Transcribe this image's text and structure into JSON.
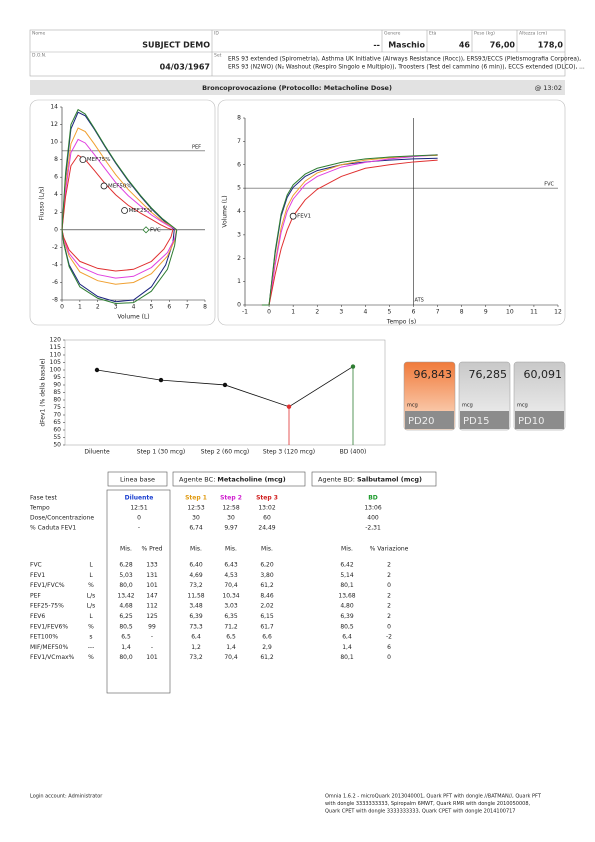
{
  "header": {
    "fields": [
      {
        "label": "Nome",
        "value": "SUBJECT DEMO"
      },
      {
        "label": "ID",
        "value": "--"
      },
      {
        "label": "Genere",
        "value": "Maschio"
      },
      {
        "label": "Età",
        "value": "46"
      },
      {
        "label": "Peso (kg)",
        "value": "76,00"
      },
      {
        "label": "Altezza (cm)",
        "value": "178,0"
      },
      {
        "label": "D.O.N.",
        "value": "04/03/1967"
      }
    ],
    "set": {
      "label": "Set",
      "lines": [
        "ERS 93 extended (Spirometria), Asthma UK Initiative (Airways Resistance (Rocc)), ERS93/ECCS (Pletismografia Corporea),",
        "ERS 93 (N2WO) (N₂ Washout (Respiro Singolo e Multiplo)), Troosters (Test del cammino (6 min)), ECCS extended (DLCO), ..."
      ]
    }
  },
  "section": {
    "title": "Broncoprovocazione  (Protocollo: Metacholine Dose)",
    "time": "@ 13:02"
  },
  "chart_data": [
    {
      "type": "line",
      "x_label": "Volume (L)",
      "y_label": "Flusso (L/s)",
      "xlim": [
        0,
        8
      ],
      "xticks": [
        0,
        1,
        2,
        3,
        4,
        5,
        6,
        7,
        8
      ],
      "ylim": [
        -8,
        14
      ],
      "yticks": [
        -8,
        -6,
        -4,
        -2,
        0,
        2,
        4,
        6,
        8,
        10,
        12,
        14
      ],
      "grid": false,
      "reference_lines": [
        {
          "axis": "y",
          "value": 0
        },
        {
          "axis": "y",
          "value": 9,
          "label": "PEF"
        }
      ],
      "series": [
        {
          "color": "#1a237e",
          "x": [
            0,
            0.2,
            0.5,
            0.9,
            1.3,
            1.8,
            2.4,
            3.0,
            3.7,
            4.4,
            5.0,
            5.6,
            6.0,
            6.28,
            6.2,
            5.8,
            5.0,
            4.0,
            3.0,
            2.0,
            1.0,
            0.4,
            0.1,
            0
          ],
          "values": [
            0,
            6,
            11.5,
            13.4,
            13.0,
            11.5,
            9.5,
            7.6,
            5.6,
            3.8,
            2.4,
            1.2,
            0.5,
            0,
            -1.5,
            -4,
            -6.5,
            -8,
            -8.2,
            -7.6,
            -6.2,
            -4,
            -1.5,
            0
          ]
        },
        {
          "color": "#f0a030",
          "x": [
            0,
            0.2,
            0.5,
            0.9,
            1.3,
            1.8,
            2.4,
            3.0,
            3.7,
            4.4,
            5.0,
            5.6,
            6.1,
            6.4,
            6.3,
            5.9,
            5.0,
            4.0,
            3.0,
            2.0,
            1.0,
            0.4,
            0.1,
            0
          ],
          "values": [
            0,
            5,
            9.8,
            11.6,
            11.2,
            9.8,
            8.0,
            6.3,
            4.6,
            3.2,
            2.0,
            1.0,
            0.4,
            0,
            -1.2,
            -3,
            -5,
            -6,
            -6.2,
            -5.8,
            -4.8,
            -3,
            -1.2,
            0
          ]
        },
        {
          "color": "#e040e0",
          "x": [
            0,
            0.2,
            0.5,
            0.9,
            1.3,
            1.8,
            2.4,
            3.0,
            3.7,
            4.4,
            5.0,
            5.6,
            6.1,
            6.43,
            6.3,
            5.9,
            5.0,
            4.0,
            3.0,
            2.0,
            1.0,
            0.4,
            0.1,
            0
          ],
          "values": [
            0,
            4.5,
            8.8,
            10.3,
            9.9,
            8.6,
            7.0,
            5.4,
            3.9,
            2.7,
            1.7,
            0.9,
            0.3,
            0,
            -1,
            -2.6,
            -4.3,
            -5.3,
            -5.5,
            -5.1,
            -4.2,
            -2.7,
            -1,
            0
          ]
        },
        {
          "color": "#e03030",
          "x": [
            0,
            0.2,
            0.5,
            0.9,
            1.3,
            1.8,
            2.4,
            3.0,
            3.7,
            4.4,
            5.0,
            5.5,
            5.9,
            6.2,
            6.1,
            5.7,
            5.0,
            4.0,
            3.0,
            2.0,
            1.0,
            0.4,
            0.1,
            0
          ],
          "values": [
            0,
            3.8,
            7.3,
            8.5,
            8.0,
            6.8,
            5.3,
            4.0,
            2.8,
            1.9,
            1.2,
            0.6,
            0.2,
            0,
            -0.8,
            -2.2,
            -3.6,
            -4.5,
            -4.7,
            -4.4,
            -3.6,
            -2.3,
            -0.9,
            0
          ]
        },
        {
          "color": "#2e7d32",
          "x": [
            0,
            0.2,
            0.5,
            0.9,
            1.3,
            1.8,
            2.4,
            3.0,
            3.7,
            4.4,
            5.0,
            5.6,
            6.1,
            6.42,
            6.3,
            5.9,
            5.0,
            4.0,
            3.0,
            2.0,
            1.0,
            0.4,
            0.1,
            0
          ],
          "values": [
            0,
            6.5,
            12,
            13.7,
            13.2,
            11.6,
            9.6,
            7.7,
            5.7,
            3.9,
            2.5,
            1.3,
            0.5,
            0,
            -1.8,
            -4.5,
            -7,
            -8.3,
            -8.4,
            -7.8,
            -6.5,
            -4.2,
            -1.6,
            0
          ]
        }
      ],
      "markers": [
        {
          "label": "MEF75%",
          "x": 1.17,
          "y": 8.0,
          "shape": "circle",
          "color": "#222"
        },
        {
          "label": "MEF50%",
          "x": 2.35,
          "y": 5.0,
          "shape": "circle",
          "color": "#222"
        },
        {
          "label": "MEF25%",
          "x": 3.5,
          "y": 2.2,
          "shape": "circle",
          "color": "#222"
        },
        {
          "label": "FVC",
          "x": 4.7,
          "y": 0,
          "shape": "diamond",
          "color": "#2e7d32"
        }
      ]
    },
    {
      "type": "line",
      "x_label": "Tempo (s)",
      "y_label": "Volume (L)",
      "xlim": [
        -1,
        12
      ],
      "xticks": [
        -1,
        0,
        1,
        2,
        3,
        4,
        5,
        6,
        7,
        8,
        9,
        10,
        11,
        12
      ],
      "ylim": [
        0,
        8
      ],
      "yticks": [
        0,
        1,
        2,
        3,
        4,
        5,
        6,
        7,
        8
      ],
      "grid": false,
      "reference_lines": [
        {
          "axis": "y",
          "value": 5,
          "label": "FVC"
        },
        {
          "axis": "x",
          "value": 6,
          "label": "ATS"
        }
      ],
      "series": [
        {
          "color": "#1a237e",
          "x": [
            -0.3,
            0,
            0.25,
            0.5,
            0.75,
            1,
            1.5,
            2,
            3,
            4,
            5,
            6,
            7
          ],
          "values": [
            0,
            0,
            2.2,
            3.8,
            4.6,
            5.03,
            5.5,
            5.75,
            6.0,
            6.12,
            6.2,
            6.25,
            6.28
          ]
        },
        {
          "color": "#f0a030",
          "x": [
            -0.3,
            0,
            0.25,
            0.5,
            0.75,
            1,
            1.5,
            2,
            3,
            4,
            5,
            6,
            7
          ],
          "values": [
            0,
            0,
            1.8,
            3.3,
            4.2,
            4.69,
            5.3,
            5.65,
            6.0,
            6.2,
            6.3,
            6.37,
            6.4
          ]
        },
        {
          "color": "#e040e0",
          "x": [
            -0.3,
            0,
            0.25,
            0.5,
            0.75,
            1,
            1.5,
            2,
            3,
            4,
            5,
            6,
            7
          ],
          "values": [
            0,
            0,
            1.7,
            3.1,
            4.0,
            4.53,
            5.15,
            5.5,
            5.9,
            6.1,
            6.25,
            6.35,
            6.43
          ]
        },
        {
          "color": "#e03030",
          "x": [
            -0.3,
            0,
            0.25,
            0.5,
            0.75,
            1,
            1.5,
            2,
            3,
            4,
            5,
            6,
            7
          ],
          "values": [
            0,
            0,
            1.3,
            2.4,
            3.2,
            3.8,
            4.5,
            4.95,
            5.5,
            5.85,
            6.0,
            6.12,
            6.2
          ]
        },
        {
          "color": "#2e7d32",
          "x": [
            -0.3,
            0,
            0.25,
            0.5,
            0.75,
            1,
            1.5,
            2,
            3,
            4,
            5,
            6,
            7
          ],
          "values": [
            0,
            0,
            2.3,
            3.9,
            4.7,
            5.14,
            5.6,
            5.85,
            6.1,
            6.25,
            6.33,
            6.38,
            6.42
          ]
        }
      ],
      "markers": [
        {
          "label": "FEV1",
          "x": 1,
          "y": 3.8,
          "shape": "circle",
          "color": "#222"
        }
      ]
    },
    {
      "type": "category-line",
      "y_label": "dFev1 (% della basale)",
      "categories": [
        "Diluente",
        "Step 1 (30 mcg)",
        "Step 2 (60 mcg)",
        "Step 3 (120 mcg)",
        "BD (400)"
      ],
      "values": [
        100,
        93.26,
        90.03,
        75.51,
        102.31
      ],
      "point_colors": [
        "#111",
        "#111",
        "#111",
        "#e03030",
        "#2e7d32"
      ],
      "drop_lines": [
        false,
        false,
        false,
        true,
        true
      ],
      "ylim": [
        50,
        120
      ],
      "yticks": [
        50,
        55,
        60,
        65,
        70,
        75,
        80,
        85,
        90,
        95,
        100,
        105,
        110,
        115,
        120
      ],
      "grid": false,
      "color": "#111"
    }
  ],
  "pd_boxes": [
    {
      "value": "96,843",
      "unit": "mcg",
      "label": "PD20",
      "highlight": true
    },
    {
      "value": "76,285",
      "unit": "mcg",
      "label": "PD15",
      "highlight": false
    },
    {
      "value": "60,091",
      "unit": "mcg",
      "label": "PD10",
      "highlight": false
    }
  ],
  "buttons": [
    {
      "label": "Linea base"
    },
    {
      "label": "Agente BC:",
      "value": "Metacholine (mcg)"
    },
    {
      "label": "Agente BD:",
      "value": "Salbutamol (mcg)"
    }
  ],
  "table": {
    "phase_colors": [
      "#222",
      "#1a3fd0",
      "#e09a10",
      "#d020d0",
      "#d02020",
      "#1a9a2a"
    ],
    "phase_rows": [
      [
        "Fase test",
        "Diluente",
        "Step 1",
        "Step 2",
        "Step 3",
        "BD"
      ],
      [
        "Tempo",
        "12:51",
        "12:53",
        "12:58",
        "13:02",
        "13:06"
      ],
      [
        "Dose/Concentrazione",
        "0",
        "30",
        "30",
        "60",
        "400"
      ],
      [
        "% Caduta FEV1",
        "-",
        "6,74",
        "9,97",
        "24,49",
        "-2,31"
      ]
    ],
    "col_headers": [
      "Mis.",
      "% Pred",
      "Mis.",
      "Mis.",
      "Mis.",
      "Mis.",
      "% Variazione"
    ],
    "rows": [
      [
        "FVC",
        "L",
        "6,28",
        "133",
        "6,40",
        "6,43",
        "6,20",
        "6,42",
        "2"
      ],
      [
        "FEV1",
        "L",
        "5,03",
        "131",
        "4,69",
        "4,53",
        "3,80",
        "5,14",
        "2"
      ],
      [
        "FEV1/FVC%",
        "%",
        "80,0",
        "101",
        "73,2",
        "70,4",
        "61,2",
        "80,1",
        "0"
      ],
      [
        "PEF",
        "L/s",
        "13,42",
        "147",
        "11,58",
        "10,34",
        "8,46",
        "13,68",
        "2"
      ],
      [
        "FEF25-75%",
        "L/s",
        "4,68",
        "112",
        "3,48",
        "3,03",
        "2,02",
        "4,80",
        "2"
      ],
      [
        "FEV6",
        "L",
        "6,25",
        "125",
        "6,39",
        "6,35",
        "6,15",
        "6,39",
        "2"
      ],
      [
        "FEV1/FEV6%",
        "%",
        "80,5",
        "99",
        "73,3",
        "71,2",
        "61,7",
        "80,5",
        "0"
      ],
      [
        "FET100%",
        "s",
        "6,5",
        "-",
        "6,4",
        "6,5",
        "6,6",
        "6,4",
        "-2"
      ],
      [
        "MIF/MEF50%",
        "---",
        "1,4",
        "-",
        "1,2",
        "1,4",
        "2,9",
        "1,4",
        "6"
      ],
      [
        "FEV1/VCmax%",
        "%",
        "80,0",
        "101",
        "73,2",
        "70,4",
        "61,2",
        "80,1",
        "0"
      ]
    ]
  },
  "footer": {
    "login": "Login account: Administrator",
    "lines": [
      "Omnia 1.6.2 - microQuark 2013040001, Quark PFT with dongle //BATMAN//, Quark PFT",
      "with dongle 3333333333, Spiropalm 6MWT, Quark RMR with dongle 2010050008,",
      "Quark CPET with dongle 3333333333, Quark CPET with dongle 2014100717"
    ]
  }
}
